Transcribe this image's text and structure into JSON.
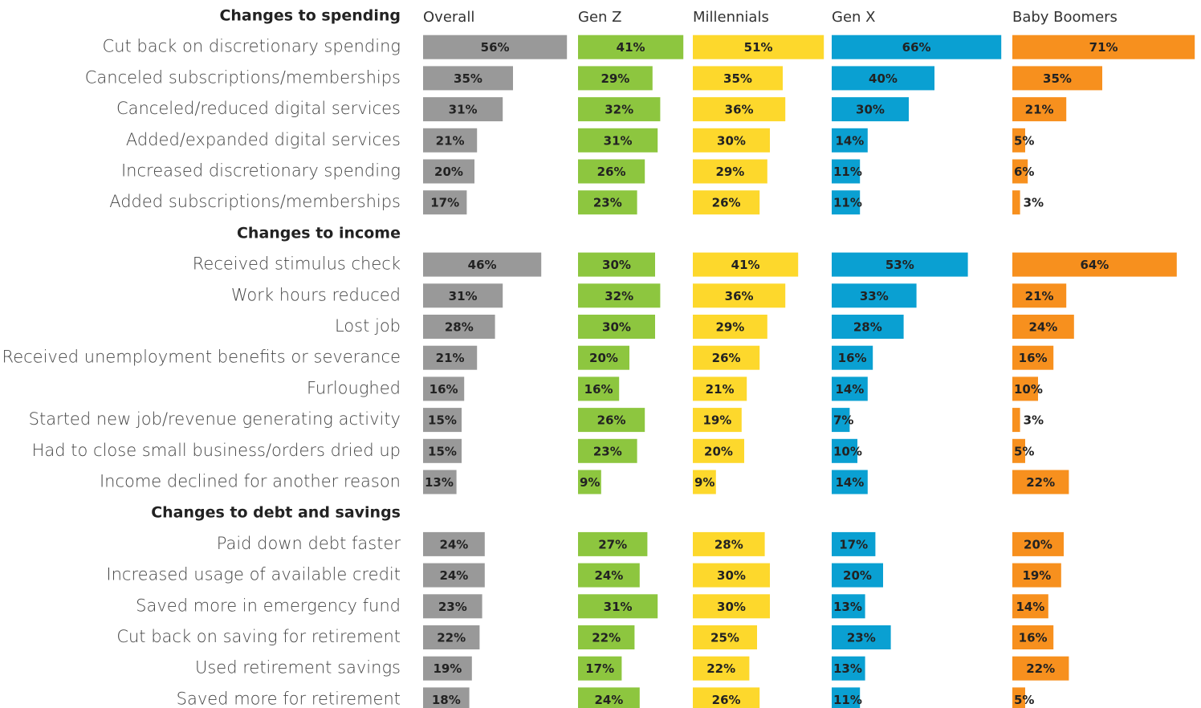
{
  "chart_data": {
    "type": "bar",
    "series": [
      {
        "name": "Overall",
        "color": "#999999"
      },
      {
        "name": "Gen Z",
        "color": "#8dc63f"
      },
      {
        "name": "Millennials",
        "color": "#fdd82c"
      },
      {
        "name": "Gen X",
        "color": "#0aa0d2"
      },
      {
        "name": "Baby Boomers",
        "color": "#f7901e"
      }
    ],
    "sections": [
      {
        "title": "Changes to spending",
        "categories": [
          "Cut back on discretionary spending",
          "Canceled subscriptions/memberships",
          "Canceled/reduced digital services",
          "Added/expanded digital services",
          "Increased discretionary spending",
          "Added subscriptions/memberships"
        ],
        "series": [
          {
            "values": [
              56,
              35,
              31,
              21,
              20,
              17
            ],
            "value_labels": [
              "56%",
              "35%",
              "31%",
              "21%",
              "20%",
              "17%"
            ]
          },
          {
            "values": [
              41,
              29,
              32,
              31,
              26,
              23
            ],
            "value_labels": [
              "41%",
              "29%",
              "32%",
              "31%",
              "26%",
              "23%"
            ]
          },
          {
            "values": [
              51,
              35,
              36,
              30,
              29,
              26
            ],
            "value_labels": [
              "51%",
              "35%",
              "36%",
              "30%",
              "29%",
              "26%"
            ]
          },
          {
            "values": [
              66,
              40,
              30,
              14,
              11,
              11
            ],
            "value_labels": [
              "66%",
              "40%",
              "30%",
              "14%",
              "11%",
              "11%"
            ]
          },
          {
            "values": [
              71,
              35,
              21,
              5,
              6,
              3
            ],
            "value_labels": [
              "71%",
              "35%",
              "21%",
              "5%",
              "6%",
              "3%"
            ]
          }
        ]
      },
      {
        "title": "Changes to income",
        "categories": [
          "Received stimulus check",
          "Work hours reduced",
          "Lost job",
          "Received unemployment benefits or severance",
          "Furloughed",
          "Started new job/revenue generating activity",
          "Had to close small business/orders dried up",
          "Income declined for another reason"
        ],
        "series": [
          {
            "values": [
              46,
              31,
              28,
              21,
              16,
              15,
              15,
              13
            ],
            "value_labels": [
              "46%",
              "31%",
              "28%",
              "21%",
              "16%",
              "15%",
              "15%",
              "13%"
            ]
          },
          {
            "values": [
              30,
              32,
              30,
              20,
              16,
              26,
              23,
              9
            ],
            "value_labels": [
              "30%",
              "32%",
              "30%",
              "20%",
              "16%",
              "26%",
              "23%",
              "9%"
            ]
          },
          {
            "values": [
              41,
              36,
              29,
              26,
              21,
              19,
              20,
              9
            ],
            "value_labels": [
              "41%",
              "36%",
              "29%",
              "26%",
              "21%",
              "19%",
              "20%",
              "9%"
            ]
          },
          {
            "values": [
              53,
              33,
              28,
              16,
              14,
              7,
              10,
              14
            ],
            "value_labels": [
              "53%",
              "33%",
              "28%",
              "16%",
              "14%",
              "7%",
              "10%",
              "14%"
            ]
          },
          {
            "values": [
              64,
              21,
              24,
              16,
              10,
              3,
              5,
              22
            ],
            "value_labels": [
              "64%",
              "21%",
              "24%",
              "16%",
              "10%",
              "3%",
              "5%",
              "22%"
            ]
          }
        ]
      },
      {
        "title": "Changes to debt and savings",
        "categories": [
          "Paid down debt faster",
          "Increased usage of available credit",
          "Saved more in emergency fund",
          "Cut back on saving for retirement",
          "Used retirement savings",
          "Saved more for retirement"
        ],
        "series": [
          {
            "values": [
              24,
              24,
              23,
              22,
              19,
              18
            ],
            "value_labels": [
              "24%",
              "24%",
              "23%",
              "22%",
              "19%",
              "18%"
            ]
          },
          {
            "values": [
              27,
              24,
              31,
              22,
              17,
              24
            ],
            "value_labels": [
              "27%",
              "24%",
              "31%",
              "22%",
              "17%",
              "24%"
            ]
          },
          {
            "values": [
              28,
              30,
              30,
              25,
              22,
              26
            ],
            "value_labels": [
              "28%",
              "30%",
              "30%",
              "25%",
              "22%",
              "26%"
            ]
          },
          {
            "values": [
              17,
              20,
              13,
              23,
              13,
              11
            ],
            "value_labels": [
              "17%",
              "20%",
              "13%",
              "23%",
              "13%",
              "11%"
            ]
          },
          {
            "values": [
              20,
              19,
              14,
              16,
              22,
              5
            ],
            "value_labels": [
              "20%",
              "19%",
              "14%",
              "16%",
              "22%",
              "5%"
            ]
          }
        ]
      }
    ]
  }
}
